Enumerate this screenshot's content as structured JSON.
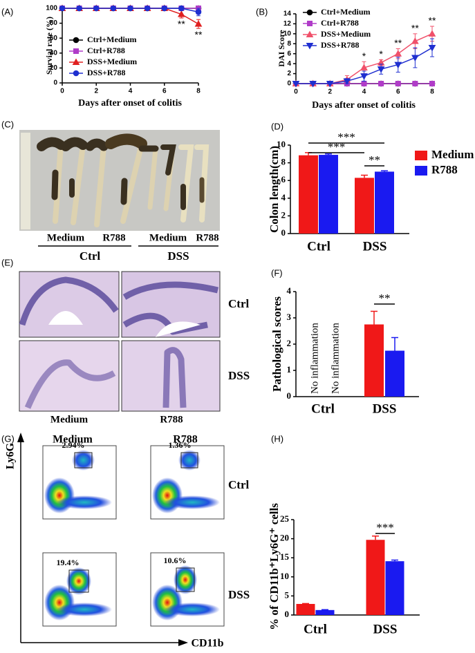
{
  "panel_labels": [
    "(A)",
    "(B)",
    "(C)",
    "(D)",
    "(E)",
    "(F)",
    "(G)",
    "(H)"
  ],
  "images": {
    "colon_photo": {
      "labels": [
        "Medium",
        "R788",
        "Medium",
        "R788"
      ],
      "groups": [
        "Ctrl",
        "DSS"
      ]
    },
    "histology": {
      "rows": [
        "Ctrl",
        "DSS"
      ],
      "columns": [
        "Medium",
        "R788"
      ]
    },
    "flow": {
      "columns": [
        "Medium",
        "R788"
      ],
      "rows": [
        "Ctrl",
        "DSS"
      ],
      "gates": [
        "2.94%",
        "1.36%",
        "19.4%",
        "10.6%"
      ],
      "y_axis": "Ly6G",
      "x_axis": "CD11b"
    }
  },
  "chart_data": [
    {
      "type": "line",
      "xlabel": "Days after onset of colitis",
      "ylabel": "Survial rate (%)",
      "x": [
        0,
        1,
        2,
        3,
        4,
        5,
        6,
        7,
        8
      ],
      "xlim": [
        0,
        8
      ],
      "xticks": [
        0,
        2,
        4,
        6,
        8
      ],
      "ylim": [
        0,
        100
      ],
      "yticks": [
        0,
        20,
        40,
        60,
        80,
        100
      ],
      "legend": "left",
      "series": [
        {
          "name": "Ctrl+Medium",
          "color": "#000000",
          "marker": "circle",
          "values": [
            100,
            100,
            100,
            100,
            100,
            100,
            100,
            100,
            100
          ]
        },
        {
          "name": "Ctrl+R788",
          "color": "#b03cc8",
          "marker": "square",
          "values": [
            100,
            100,
            100,
            100,
            100,
            100,
            100,
            100,
            100
          ]
        },
        {
          "name": "DSS+Medium",
          "color": "#e02020",
          "marker": "triangle",
          "values": [
            100,
            100,
            100,
            100,
            100,
            100,
            100,
            92,
            79
          ],
          "errors": [
            null,
            null,
            null,
            null,
            null,
            null,
            null,
            5,
            6
          ]
        },
        {
          "name": "DSS+R788",
          "color": "#1f2fd0",
          "marker": "circle",
          "values": [
            100,
            100,
            100,
            100,
            100,
            100,
            100,
            100,
            95
          ],
          "errors": [
            null,
            null,
            null,
            null,
            null,
            null,
            null,
            null,
            5
          ]
        }
      ],
      "annotations": [
        {
          "text": "**",
          "x": 7
        },
        {
          "text": "**",
          "x": 8
        }
      ]
    },
    {
      "type": "line",
      "xlabel": "Days after onset of colitis",
      "ylabel": "DAI Score",
      "x": [
        0,
        1,
        2,
        3,
        4,
        5,
        6,
        7,
        8
      ],
      "xlim": [
        0,
        8
      ],
      "xticks": [
        0,
        2,
        4,
        6,
        8
      ],
      "ylim": [
        0,
        14
      ],
      "yticks": [
        0,
        2,
        4,
        6,
        8,
        10,
        12,
        14
      ],
      "legend": "upper-left",
      "series": [
        {
          "name": "Ctrl+Medium",
          "color": "#000000",
          "marker": "circle",
          "values": [
            0,
            0,
            0,
            0,
            0,
            0,
            0,
            0,
            0
          ]
        },
        {
          "name": "Ctrl+R788",
          "color": "#b03cc8",
          "marker": "square",
          "values": [
            0,
            0,
            0,
            0,
            0,
            0,
            0,
            0,
            0
          ]
        },
        {
          "name": "DSS+Medium",
          "color": "#f0506a",
          "marker": "triangle",
          "values": [
            0,
            0,
            0,
            0.8,
            3.2,
            4.2,
            6,
            8.5,
            10
          ],
          "errors": [
            null,
            null,
            null,
            0.8,
            1.2,
            0.6,
            1,
            1.5,
            1.5
          ]
        },
        {
          "name": "DSS+R788",
          "color": "#1f2fd0",
          "marker": "triangle-down",
          "values": [
            0,
            0,
            0,
            0.5,
            1.5,
            2.9,
            3.8,
            5.2,
            7.2
          ],
          "errors": [
            null,
            null,
            null,
            0.5,
            1,
            1,
            1.5,
            2,
            1.8
          ]
        }
      ],
      "annotations": [
        {
          "text": "*",
          "x": 4
        },
        {
          "text": "*",
          "x": 5
        },
        {
          "text": "**",
          "x": 6
        },
        {
          "text": "**",
          "x": 7
        },
        {
          "text": "**",
          "x": 8
        }
      ]
    },
    {
      "type": "bar",
      "ylabel": "Colon length(cm)",
      "categories": [
        "Ctrl",
        "DSS"
      ],
      "ylim": [
        0,
        10
      ],
      "yticks": [
        0,
        2,
        4,
        6,
        8,
        10
      ],
      "legend": "right",
      "series": [
        {
          "name": "Medium",
          "color": "#f01818",
          "values": [
            8.85,
            6.3
          ],
          "errors": [
            0.3,
            0.3
          ]
        },
        {
          "name": "R788",
          "color": "#1a1af0",
          "values": [
            8.9,
            7.0
          ],
          "errors": [
            0.1,
            0.1
          ]
        }
      ],
      "significance": [
        "***",
        "***",
        "**"
      ]
    },
    {
      "type": "bar",
      "ylabel": "Pathological scores",
      "categories": [
        "Ctrl",
        "DSS"
      ],
      "ylim": [
        0,
        4
      ],
      "yticks": [
        0,
        1,
        2,
        3,
        4
      ],
      "series": [
        {
          "name": "Medium",
          "color": "#f01818",
          "values": [
            null,
            2.75
          ],
          "errors": [
            null,
            0.5
          ]
        },
        {
          "name": "R788",
          "color": "#1a1af0",
          "values": [
            null,
            1.75
          ],
          "errors": [
            null,
            0.5
          ]
        }
      ],
      "notes": [
        "No inflammation",
        "No inflammation"
      ],
      "significance": [
        "**"
      ]
    },
    {
      "type": "bar",
      "ylabel": "% of CD11b⁺Ly6G⁺ cells",
      "categories": [
        "Ctrl",
        "DSS"
      ],
      "ylim": [
        0,
        25
      ],
      "yticks": [
        0,
        5,
        10,
        15,
        20,
        25
      ],
      "series": [
        {
          "name": "Medium",
          "color": "#f01818",
          "values": [
            2.9,
            19.7
          ],
          "errors": [
            0.1,
            1
          ]
        },
        {
          "name": "R788",
          "color": "#1a1af0",
          "values": [
            1.3,
            14.1
          ],
          "errors": [
            0.1,
            0.3
          ]
        }
      ],
      "significance": [
        "***"
      ]
    }
  ]
}
